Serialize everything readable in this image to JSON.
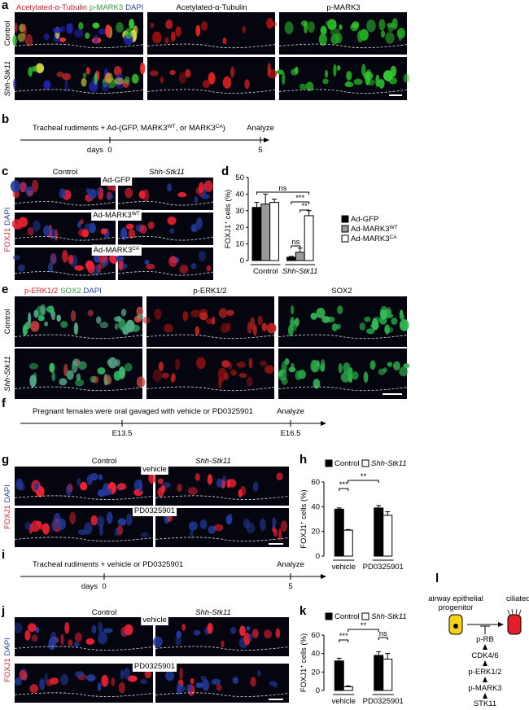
{
  "panels": {
    "a": {
      "label": "a",
      "merged_title": [
        "Acetylated-α-Tubulin",
        "p-MARK3",
        "DAPI"
      ],
      "titles": [
        "Acetylated-α-Tubulin",
        "p-MARK3"
      ],
      "rows": [
        "Control",
        "Shh-Stk11"
      ]
    },
    "b": {
      "label": "b",
      "title_parts": [
        "Tracheal rudiments + Ad-(GFP, MARK3",
        "WT",
        ", or MARK3",
        "CA",
        ")"
      ],
      "days": "days",
      "ticks": [
        "0",
        "5"
      ],
      "end": "Analyze"
    },
    "c": {
      "label": "c",
      "columns": [
        "Control",
        "Shh-Stk11"
      ],
      "side": [
        "FOXJ1",
        "DAPI"
      ],
      "rows": [
        [
          "Ad-GFP"
        ],
        [
          "Ad-MARK3",
          "WT"
        ],
        [
          "Ad-MARK3",
          "CA"
        ]
      ]
    },
    "d": {
      "label": "d",
      "chart": {
        "type": "bar",
        "ylabel": [
          "FOXJ1",
          "+",
          " cells (%)"
        ],
        "ylim": [
          0,
          50
        ],
        "yticks": [
          0,
          10,
          20,
          30,
          40,
          50
        ],
        "groups": [
          "Control",
          "Shh-Stk11"
        ],
        "series": [
          {
            "name": [
              "Ad-GFP"
            ],
            "color": "#000000",
            "values": [
              32,
              2
            ],
            "errors": [
              3,
              0.5
            ]
          },
          {
            "name": [
              "Ad-MARK3",
              "WT"
            ],
            "color": "#999999",
            "values": [
              34,
              5
            ],
            "errors": [
              6,
              2.5
            ]
          },
          {
            "name": [
              "Ad-MARK3",
              "CA"
            ],
            "color": "#ffffff",
            "values": [
              35,
              27
            ],
            "errors": [
              2,
              3
            ]
          }
        ],
        "significance": [
          "ns",
          "***",
          "**",
          "ns"
        ]
      }
    },
    "e": {
      "label": "e",
      "merged_title": [
        "p-ERK1/2",
        "SOX2",
        "DAPI"
      ],
      "titles": [
        "p-ERK1/2",
        "SOX2"
      ],
      "rows": [
        "Control",
        "Shh-Stk11"
      ]
    },
    "f": {
      "label": "f",
      "title": "Pregnant females were oral gavaged with vehicle or PD0325901",
      "ticks": [
        "E13.5",
        "E16.5"
      ],
      "end": "Analyze"
    },
    "g": {
      "label": "g",
      "columns": [
        "Control",
        "Shh-Stk11"
      ],
      "side": [
        "FOXJ1",
        "DAPI"
      ],
      "rows": [
        "vehicle",
        "PD0325901"
      ]
    },
    "h": {
      "label": "h",
      "chart": {
        "type": "bar",
        "ylabel": [
          "FOXJ1",
          "+",
          " cells (%)"
        ],
        "ylim": [
          0,
          60
        ],
        "yticks": [
          0,
          20,
          40,
          60
        ],
        "groups": [
          "vehicle",
          "PD0325901"
        ],
        "series": [
          {
            "name": [
              "Control"
            ],
            "color": "#000000",
            "values": [
              38,
              39
            ],
            "errors": [
              1,
              2
            ]
          },
          {
            "name": [
              "Shh-Stk11"
            ],
            "color": "#ffffff",
            "values": [
              21,
              33
            ],
            "errors": [
              0.5,
              3
            ]
          }
        ],
        "significance": [
          "***",
          "**"
        ]
      }
    },
    "i": {
      "label": "i",
      "title": "Tracheal rudiments + vehicle or PD0325901",
      "days": "days",
      "ticks": [
        "0",
        "5"
      ],
      "end": "Analyze"
    },
    "j": {
      "label": "j",
      "columns": [
        "Control",
        "Shh-Stk11"
      ],
      "side": [
        "FOXJ1",
        "DAPI"
      ],
      "rows": [
        "vehicle",
        "PD0325901"
      ]
    },
    "k": {
      "label": "k",
      "chart": {
        "type": "bar",
        "ylabel": [
          "FOXJ1",
          "+",
          " cells (%)"
        ],
        "ylim": [
          0,
          60
        ],
        "yticks": [
          0,
          20,
          40,
          60
        ],
        "groups": [
          "vehicle",
          "PD0325901"
        ],
        "series": [
          {
            "name": [
              "Control"
            ],
            "color": "#000000",
            "values": [
              32,
              38
            ],
            "errors": [
              3,
              4
            ]
          },
          {
            "name": [
              "Shh-Stk11"
            ],
            "color": "#ffffff",
            "values": [
              4,
              34
            ],
            "errors": [
              1,
              6
            ]
          }
        ],
        "significance": [
          "***",
          "**",
          "ns"
        ]
      }
    },
    "l": {
      "label": "l",
      "progenitor": [
        "airway epithelial",
        "progenitor"
      ],
      "ciliated": "ciliated cell",
      "pathway": [
        "p-RB",
        "CDK4/6",
        "p-ERK1/2",
        "p-MARK3",
        "STK11"
      ]
    }
  }
}
